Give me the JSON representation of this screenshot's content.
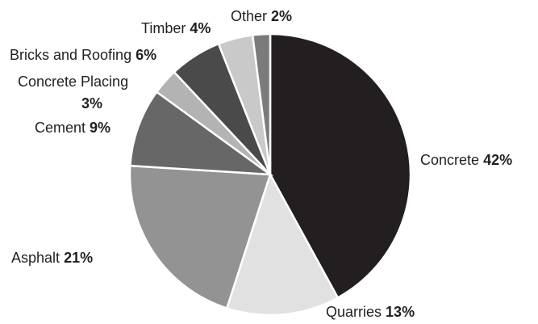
{
  "chart_data": {
    "type": "pie",
    "categories": [
      "Concrete",
      "Quarries",
      "Asphalt",
      "Cement",
      "Concrete Placing",
      "Bricks and Roofing",
      "Timber",
      "Other"
    ],
    "values": [
      42,
      13,
      21,
      9,
      3,
      6,
      4,
      2
    ],
    "value_labels": [
      "42%",
      "13%",
      "21%",
      "9%",
      "3%",
      "6%",
      "4%",
      "2%"
    ],
    "colors": [
      "#231f20",
      "#e1e1e1",
      "#939393",
      "#676767",
      "#b3b3b3",
      "#4a4a4a",
      "#c9c9c9",
      "#7b7b7b"
    ]
  }
}
